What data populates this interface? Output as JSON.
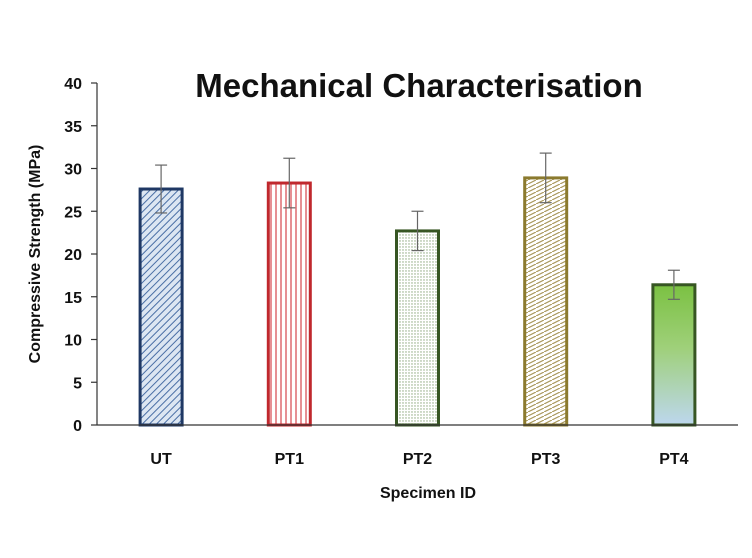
{
  "chart_data": {
    "type": "bar",
    "title": "Mechanical Characterisation",
    "xlabel": "Specimen ID",
    "ylabel": "Compressive Strength (MPa)",
    "ylim": [
      0,
      40
    ],
    "yticks": [
      0,
      5,
      10,
      15,
      20,
      25,
      30,
      35,
      40
    ],
    "grid": false,
    "categories": [
      "UT",
      "PT1",
      "PT2",
      "PT3",
      "PT4"
    ],
    "values": [
      27.6,
      28.3,
      22.7,
      28.9,
      16.4
    ],
    "errors": [
      2.8,
      2.9,
      2.3,
      2.9,
      1.7
    ],
    "bar_styles": [
      {
        "stroke": "#1f3864",
        "fill": "#dce6f2",
        "pattern": "diagonal",
        "pattern_color": "#4a6fa5"
      },
      {
        "stroke": "#c0282d",
        "fill": "#ffffff",
        "pattern": "vertical",
        "pattern_color": "#d9545a"
      },
      {
        "stroke": "#375623",
        "fill": "#ffffff",
        "pattern": "dots",
        "pattern_color": "#8aa57a"
      },
      {
        "stroke": "#8b7a2e",
        "fill": "#ffffff",
        "pattern": "hatch",
        "pattern_color": "#a8975a"
      },
      {
        "stroke": "#375623",
        "fill": "gradient",
        "pattern": "gradient",
        "gradient": [
          "#7bc142",
          "#bdd7ee"
        ]
      }
    ]
  }
}
